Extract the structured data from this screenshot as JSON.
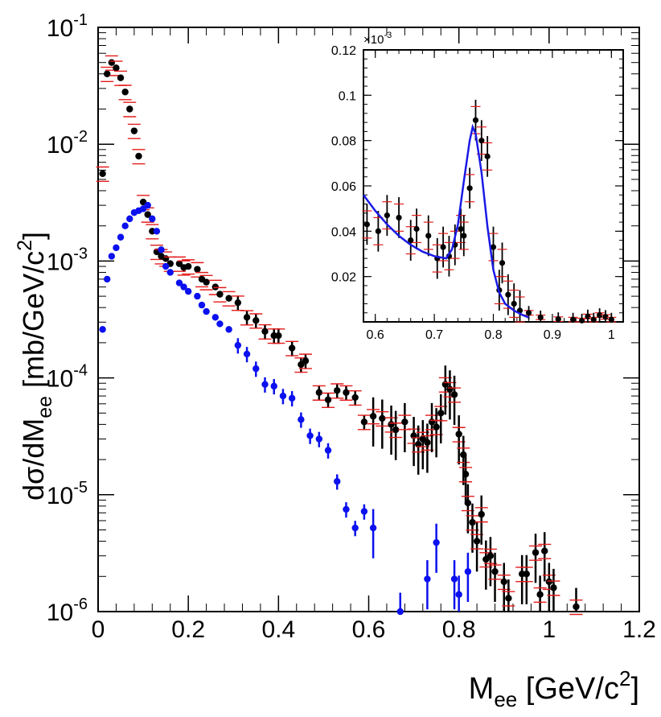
{
  "colors": {
    "black_points": "#000000",
    "blue_points": "#0a10ee",
    "red_sys": "#e41a1a",
    "fit_line": "#1a1ae6"
  },
  "chart_data": [
    {
      "name": "main",
      "type": "scatter",
      "xlabel": "M",
      "xlabel_sub": "ee",
      "xlabel_unit_pre": " [GeV/c",
      "xlabel_unit_sup": "2",
      "xlabel_unit_post": "]",
      "ylabel_pre": "dσ/dM",
      "ylabel_sub": "ee",
      "ylabel_unit_pre": " [mb/GeV/c",
      "ylabel_unit_sup": "2",
      "ylabel_unit_post": "]",
      "xlim": [
        0,
        1.2
      ],
      "ylim": [
        1e-06,
        0.1
      ],
      "yscale": "log",
      "xticks": [
        {
          "value": 0,
          "label": "0"
        },
        {
          "value": 0.2,
          "label": "0.2"
        },
        {
          "value": 0.4,
          "label": "0.4"
        },
        {
          "value": 0.6,
          "label": "0.6"
        },
        {
          "value": 0.8,
          "label": "0.8"
        },
        {
          "value": 1.0,
          "label": "1"
        },
        {
          "value": 1.2,
          "label": "1.2"
        }
      ],
      "yticks": [
        {
          "value": 1e-06,
          "base": "10",
          "exp": "-6"
        },
        {
          "value": 1e-05,
          "base": "10",
          "exp": "-5"
        },
        {
          "value": 0.0001,
          "base": "10",
          "exp": "-4"
        },
        {
          "value": 0.001,
          "base": "10",
          "exp": "-3"
        },
        {
          "value": 0.01,
          "base": "10",
          "exp": "-2"
        },
        {
          "value": 0.1,
          "base": "10",
          "exp": "-1"
        }
      ],
      "series": [
        {
          "name": "black-data",
          "color": "#000000",
          "with_systematics": true,
          "points": [
            [
              0.01,
              0.0056
            ],
            [
              0.02,
              0.04
            ],
            [
              0.03,
              0.05
            ],
            [
              0.04,
              0.045
            ],
            [
              0.05,
              0.037
            ],
            [
              0.06,
              0.028
            ],
            [
              0.07,
              0.02
            ],
            [
              0.08,
              0.013
            ],
            [
              0.09,
              0.0079
            ],
            [
              0.1,
              0.0032
            ],
            [
              0.11,
              0.0025
            ],
            [
              0.12,
              0.0018
            ],
            [
              0.13,
              0.0012
            ],
            [
              0.14,
              0.0011
            ],
            [
              0.15,
              0.00105
            ],
            [
              0.16,
              0.00095
            ],
            [
              0.18,
              0.00095
            ],
            [
              0.19,
              0.00088
            ],
            [
              0.2,
              0.0009
            ],
            [
              0.22,
              0.00085
            ],
            [
              0.23,
              0.0007
            ],
            [
              0.24,
              0.00066
            ],
            [
              0.26,
              0.0006
            ],
            [
              0.27,
              0.00052
            ],
            [
              0.29,
              0.00048
            ],
            [
              0.31,
              0.00044
            ],
            [
              0.33,
              0.00033
            ],
            [
              0.35,
              0.00031
            ],
            [
              0.37,
              0.00025
            ],
            [
              0.39,
              0.00023
            ],
            [
              0.4,
              0.00023
            ],
            [
              0.43,
              0.00018
            ],
            [
              0.45,
              0.00013
            ],
            [
              0.46,
              0.00014
            ],
            [
              0.49,
              7.5e-05
            ],
            [
              0.51,
              6.5e-05
            ],
            [
              0.53,
              7.8e-05
            ],
            [
              0.55,
              7.5e-05
            ],
            [
              0.57,
              6.8e-05
            ],
            [
              0.59,
              4.2e-05
            ],
            [
              0.61,
              4.7e-05
            ],
            [
              0.63,
              4.5e-05
            ],
            [
              0.65,
              4e-05
            ],
            [
              0.66,
              3.6e-05
            ],
            [
              0.68,
              4.2e-05
            ],
            [
              0.7,
              3.2e-05
            ],
            [
              0.71,
              2.7e-05
            ],
            [
              0.72,
              3e-05
            ],
            [
              0.73,
              2.8e-05
            ],
            [
              0.74,
              4.2e-05
            ],
            [
              0.75,
              3.8e-05
            ],
            [
              0.76,
              5e-05
            ],
            [
              0.77,
              8.8e-05
            ],
            [
              0.78,
              8e-05
            ],
            [
              0.79,
              7.2e-05
            ],
            [
              0.8,
              3.3e-05
            ],
            [
              0.81,
              2.2e-05
            ],
            [
              0.815,
              1.5e-05
            ],
            [
              0.82,
              8.5e-06
            ],
            [
              0.83,
              5.8e-06
            ],
            [
              0.84,
              4e-06
            ],
            [
              0.85,
              6.8e-06
            ],
            [
              0.86,
              2.8e-06
            ],
            [
              0.87,
              3e-06
            ],
            [
              0.88,
              2.2e-06
            ],
            [
              0.9,
              1.8e-06
            ],
            [
              0.91,
              1.3e-06
            ],
            [
              0.94,
              2.1e-06
            ],
            [
              0.95,
              2.1e-06
            ],
            [
              0.97,
              3.2e-06
            ],
            [
              0.98,
              1.4e-06
            ],
            [
              0.99,
              3.3e-06
            ],
            [
              1.0,
              1.8e-06
            ],
            [
              1.01,
              1.6e-06
            ],
            [
              1.06,
              1.1e-06
            ]
          ]
        },
        {
          "name": "blue-data",
          "color": "#0a10ee",
          "with_systematics": false,
          "points": [
            [
              0.01,
              0.00026
            ],
            [
              0.02,
              0.0007
            ],
            [
              0.03,
              0.0011
            ],
            [
              0.04,
              0.0013
            ],
            [
              0.05,
              0.0016
            ],
            [
              0.06,
              0.002
            ],
            [
              0.07,
              0.0023
            ],
            [
              0.08,
              0.0026
            ],
            [
              0.09,
              0.0027
            ],
            [
              0.1,
              0.0028
            ],
            [
              0.11,
              0.003
            ],
            [
              0.12,
              0.0023
            ],
            [
              0.13,
              0.0018
            ],
            [
              0.14,
              0.00125
            ],
            [
              0.15,
              0.0009
            ],
            [
              0.16,
              0.0008
            ],
            [
              0.18,
              0.00065
            ],
            [
              0.19,
              0.0006
            ],
            [
              0.2,
              0.00055
            ],
            [
              0.22,
              0.0005
            ],
            [
              0.23,
              0.00042
            ],
            [
              0.24,
              0.00037
            ],
            [
              0.26,
              0.00033
            ],
            [
              0.27,
              0.00029
            ],
            [
              0.29,
              0.00026
            ],
            [
              0.31,
              0.00019
            ],
            [
              0.33,
              0.00016
            ],
            [
              0.35,
              0.00012
            ],
            [
              0.37,
              8.8e-05
            ],
            [
              0.39,
              8.5e-05
            ],
            [
              0.41,
              7e-05
            ],
            [
              0.43,
              6.7e-05
            ],
            [
              0.45,
              4.4e-05
            ],
            [
              0.47,
              3.2e-05
            ],
            [
              0.49,
              3e-05
            ],
            [
              0.51,
              2.4e-05
            ],
            [
              0.53,
              1.3e-05
            ],
            [
              0.55,
              7.5e-06
            ],
            [
              0.57,
              5.2e-06
            ],
            [
              0.59,
              7.2e-06
            ],
            [
              0.61,
              5.2e-06
            ],
            [
              0.67,
              1e-06
            ],
            [
              0.73,
              1.9e-06
            ],
            [
              0.75,
              3.9e-06
            ],
            [
              0.79,
              1.9e-06
            ],
            [
              0.8,
              1.4e-06
            ],
            [
              0.82,
              2.2e-06
            ]
          ]
        }
      ]
    },
    {
      "name": "inset",
      "type": "scatter",
      "multiplier_base": "×10",
      "multiplier_exp": "-3",
      "xlim": [
        0.58,
        1.02
      ],
      "ylim": [
        0.0,
        0.12
      ],
      "xticks": [
        {
          "value": 0.6,
          "label": "0.6"
        },
        {
          "value": 0.7,
          "label": "0.7"
        },
        {
          "value": 0.8,
          "label": "0.8"
        },
        {
          "value": 0.9,
          "label": "0.9"
        },
        {
          "value": 1.0,
          "label": "1"
        }
      ],
      "yticks": [
        {
          "value": 0.02,
          "label": "0.02"
        },
        {
          "value": 0.04,
          "label": "0.04"
        },
        {
          "value": 0.06,
          "label": "0.06"
        },
        {
          "value": 0.08,
          "label": "0.08"
        },
        {
          "value": 0.1,
          "label": "0.1"
        },
        {
          "value": 0.12,
          "label": "0.12"
        }
      ],
      "points": [
        [
          0.586,
          0.043
        ],
        [
          0.605,
          0.04
        ],
        [
          0.62,
          0.047
        ],
        [
          0.64,
          0.046
        ],
        [
          0.66,
          0.036
        ],
        [
          0.67,
          0.041
        ],
        [
          0.69,
          0.038
        ],
        [
          0.705,
          0.028
        ],
        [
          0.715,
          0.033
        ],
        [
          0.725,
          0.029
        ],
        [
          0.735,
          0.034
        ],
        [
          0.745,
          0.041
        ],
        [
          0.75,
          0.038
        ],
        [
          0.76,
          0.059
        ],
        [
          0.77,
          0.089
        ],
        [
          0.78,
          0.08
        ],
        [
          0.79,
          0.073
        ],
        [
          0.8,
          0.033
        ],
        [
          0.81,
          0.014
        ],
        [
          0.815,
          0.026
        ],
        [
          0.825,
          0.012
        ],
        [
          0.835,
          0.008
        ],
        [
          0.845,
          0.005
        ],
        [
          0.86,
          0.004
        ],
        [
          0.88,
          0.002
        ],
        [
          0.91,
          0.0012
        ],
        [
          0.935,
          0.001
        ],
        [
          0.95,
          0.0006
        ],
        [
          0.96,
          0.0024
        ],
        [
          0.97,
          0.001
        ],
        [
          0.98,
          0.003
        ],
        [
          0.99,
          0.0022
        ],
        [
          1.0,
          0.001
        ]
      ],
      "fit_line": [
        [
          0.58,
          0.056
        ],
        [
          0.6,
          0.049
        ],
        [
          0.62,
          0.043
        ],
        [
          0.64,
          0.038
        ],
        [
          0.66,
          0.034
        ],
        [
          0.68,
          0.031
        ],
        [
          0.7,
          0.029
        ],
        [
          0.72,
          0.028
        ],
        [
          0.73,
          0.032
        ],
        [
          0.74,
          0.043
        ],
        [
          0.75,
          0.062
        ],
        [
          0.76,
          0.08
        ],
        [
          0.765,
          0.086
        ],
        [
          0.77,
          0.083
        ],
        [
          0.78,
          0.066
        ],
        [
          0.79,
          0.042
        ],
        [
          0.8,
          0.023
        ],
        [
          0.81,
          0.013
        ],
        [
          0.82,
          0.008
        ],
        [
          0.835,
          0.005
        ],
        [
          0.85,
          0.003
        ],
        [
          0.86,
          0.002
        ]
      ]
    }
  ]
}
